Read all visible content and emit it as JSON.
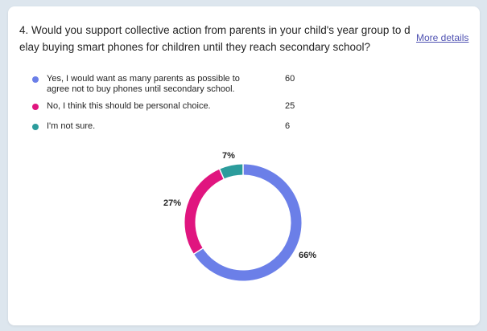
{
  "question": {
    "number": "4.",
    "text": "Would you support collective action from parents in your child's year group to delay buying smart phones for children until they reach secondary school?"
  },
  "more_details_label": "More details",
  "legend": [
    {
      "label": "Yes, I would want as many parents as possible to agree not to buy phones until secondary school.",
      "count": "60",
      "color": "#6b7fe8"
    },
    {
      "label": "No, I think this should be personal choice.",
      "count": "25",
      "color": "#e0157f"
    },
    {
      "label": "I'm not sure.",
      "count": "6",
      "color": "#2c9c9c"
    }
  ],
  "chart_data": {
    "type": "pie",
    "variant": "donut",
    "categories": [
      "Yes, I would want as many parents as possible to agree not to buy phones until secondary school.",
      "No, I think this should be personal choice.",
      "I'm not sure."
    ],
    "values": [
      60,
      25,
      6
    ],
    "percent_labels": [
      "66%",
      "27%",
      "7%"
    ],
    "colors": [
      "#6b7fe8",
      "#e0157f",
      "#2c9c9c"
    ]
  }
}
